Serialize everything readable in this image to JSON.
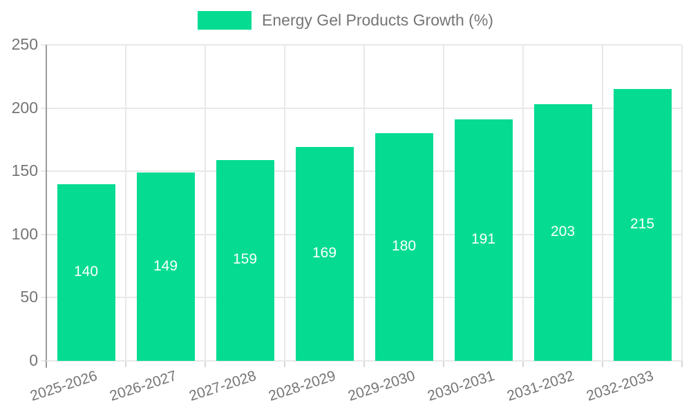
{
  "legend": {
    "label": "Energy Gel Products Growth (%)"
  },
  "colors": {
    "bar": "#05DC92",
    "legend_swatch": "#05DC92",
    "axis_text": "#757575",
    "value_text": "#ffffff",
    "gridline": "#e8e8e8",
    "axis_line": "#9a9a9a"
  },
  "chart_data": {
    "type": "bar",
    "title": "Energy Gel Products Growth (%)",
    "categories": [
      "2025-2026",
      "2026-2027",
      "2027-2028",
      "2028-2029",
      "2029-2030",
      "2030-2031",
      "2031-2032",
      "2032-2033"
    ],
    "values": [
      140,
      149,
      159,
      169,
      180,
      191,
      203,
      215
    ],
    "xlabel": "",
    "ylabel": "",
    "ylim": [
      0,
      250
    ],
    "yticks": [
      0,
      50,
      100,
      150,
      200,
      250
    ],
    "grid": true,
    "legend_position": "top",
    "value_labels": "inside-center"
  }
}
